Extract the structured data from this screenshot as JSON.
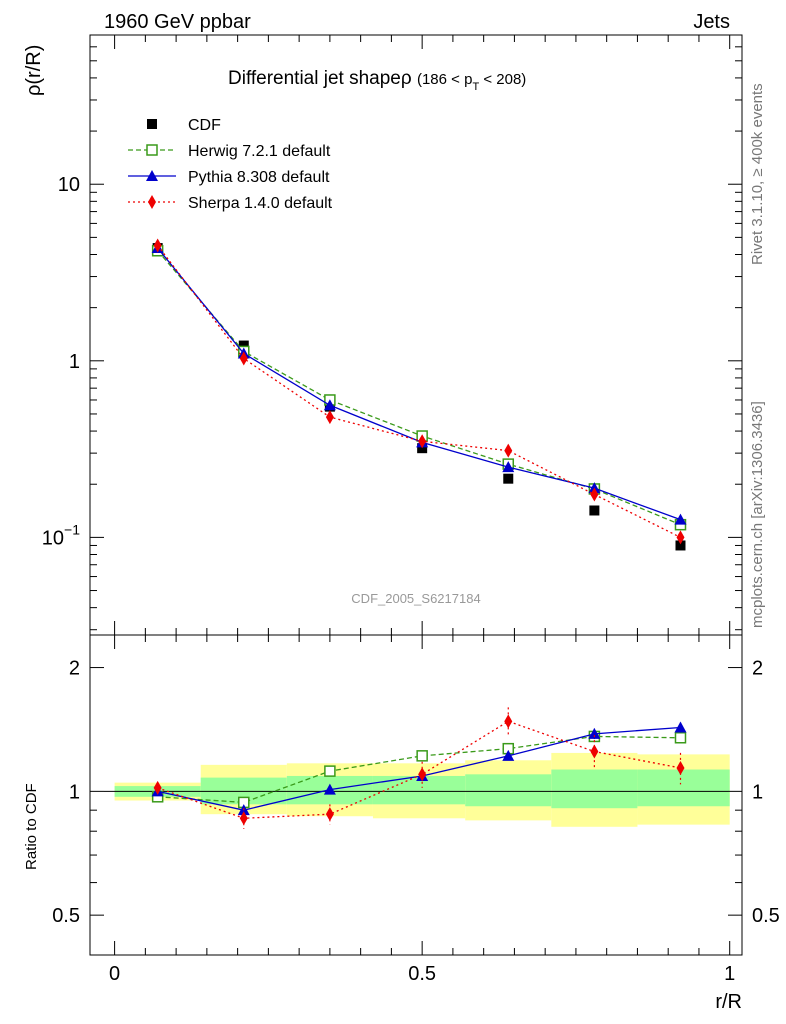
{
  "header": {
    "left": "1960 GeV ppbar",
    "right": "Jets"
  },
  "side_labels": {
    "rivet": "Rivet 3.1.10, ≥ 400k events",
    "source": "mcplots.cern.ch [arXiv:1306.3436]"
  },
  "watermark": "CDF_2005_S6217184",
  "chart_data": [
    {
      "type": "line",
      "panel": "main",
      "title": "Differential jet shape",
      "title_symbol": "ρ",
      "title_range_left": "(186 < p",
      "title_range_sub": "T",
      "title_range_right": " < 208)",
      "ylabel": "ρ(r/R)",
      "xlabel": "",
      "yscale": "log",
      "ylim": [
        0.028,
        70
      ],
      "xlim": [
        -0.04,
        1.02
      ],
      "x": [
        0.07,
        0.21,
        0.35,
        0.5,
        0.64,
        0.78,
        0.92
      ],
      "yticks": [
        {
          "value": 10,
          "label": "10"
        },
        {
          "value": 1,
          "label": "1"
        },
        {
          "value": 0.1,
          "label": "10",
          "sup": "−1"
        }
      ],
      "series": [
        {
          "name": "CDF",
          "color": "#000000",
          "marker": "square",
          "line": "none",
          "values": [
            4.35,
            1.22,
            0.55,
            0.32,
            0.215,
            0.142,
            0.09
          ]
        },
        {
          "name": "Herwig 7.2.1 default",
          "color": "#3a9a1a",
          "marker": "open-square",
          "line": "dashed",
          "values": [
            4.2,
            1.13,
            0.6,
            0.375,
            0.26,
            0.188,
            0.118
          ]
        },
        {
          "name": "Pythia 8.308 default",
          "color": "#0000cc",
          "marker": "triangle",
          "line": "solid",
          "values": [
            4.35,
            1.1,
            0.56,
            0.345,
            0.25,
            0.19,
            0.126
          ]
        },
        {
          "name": "Sherpa 1.4.0 default",
          "color": "#ee0000",
          "marker": "diamond",
          "line": "dotted",
          "values": [
            4.5,
            1.03,
            0.48,
            0.35,
            0.31,
            0.175,
            0.1
          ]
        }
      ]
    },
    {
      "type": "line",
      "panel": "ratio",
      "ylabel": "Ratio to CDF",
      "xlabel": "r/R",
      "yscale": "log",
      "ylim": [
        0.4,
        2.4
      ],
      "xlim": [
        -0.04,
        1.02
      ],
      "x": [
        0.07,
        0.21,
        0.35,
        0.5,
        0.64,
        0.78,
        0.92
      ],
      "xticks": [
        {
          "value": 0,
          "label": "0"
        },
        {
          "value": 0.5,
          "label": "0.5"
        },
        {
          "value": 1,
          "label": "1"
        }
      ],
      "yticks": [
        {
          "value": 2,
          "label": "2"
        },
        {
          "value": 1,
          "label": "1"
        },
        {
          "value": 0.5,
          "label": "0.5"
        }
      ],
      "bands": {
        "edges": [
          0,
          0.14,
          0.28,
          0.42,
          0.57,
          0.71,
          0.85,
          1.0
        ],
        "green_lo": [
          0.97,
          0.93,
          0.93,
          0.93,
          0.92,
          0.91,
          0.92
        ],
        "green_hi": [
          1.03,
          1.08,
          1.09,
          1.09,
          1.1,
          1.13,
          1.13
        ],
        "yellow_lo": [
          0.95,
          0.88,
          0.87,
          0.86,
          0.85,
          0.82,
          0.83
        ],
        "yellow_hi": [
          1.05,
          1.16,
          1.17,
          1.17,
          1.19,
          1.24,
          1.23
        ]
      },
      "series": [
        {
          "name": "Herwig 7.2.1 default",
          "color": "#3a9a1a",
          "marker": "open-square",
          "line": "dashed",
          "values": [
            0.97,
            0.94,
            1.12,
            1.22,
            1.27,
            1.36,
            1.35
          ]
        },
        {
          "name": "Pythia 8.308 default",
          "color": "#0000cc",
          "marker": "triangle",
          "line": "solid",
          "values": [
            1.0,
            0.9,
            1.01,
            1.09,
            1.22,
            1.38,
            1.43
          ],
          "err": [
            0.0,
            0.02,
            0.02,
            0.02,
            0.02,
            0.04,
            0.04
          ]
        },
        {
          "name": "Sherpa 1.4.0 default",
          "color": "#ee0000",
          "marker": "diamond",
          "line": "dotted",
          "values": [
            1.02,
            0.86,
            0.88,
            1.1,
            1.48,
            1.25,
            1.14
          ],
          "err": [
            0.0,
            0.05,
            0.05,
            0.08,
            0.12,
            0.12,
            0.1
          ]
        }
      ]
    }
  ]
}
